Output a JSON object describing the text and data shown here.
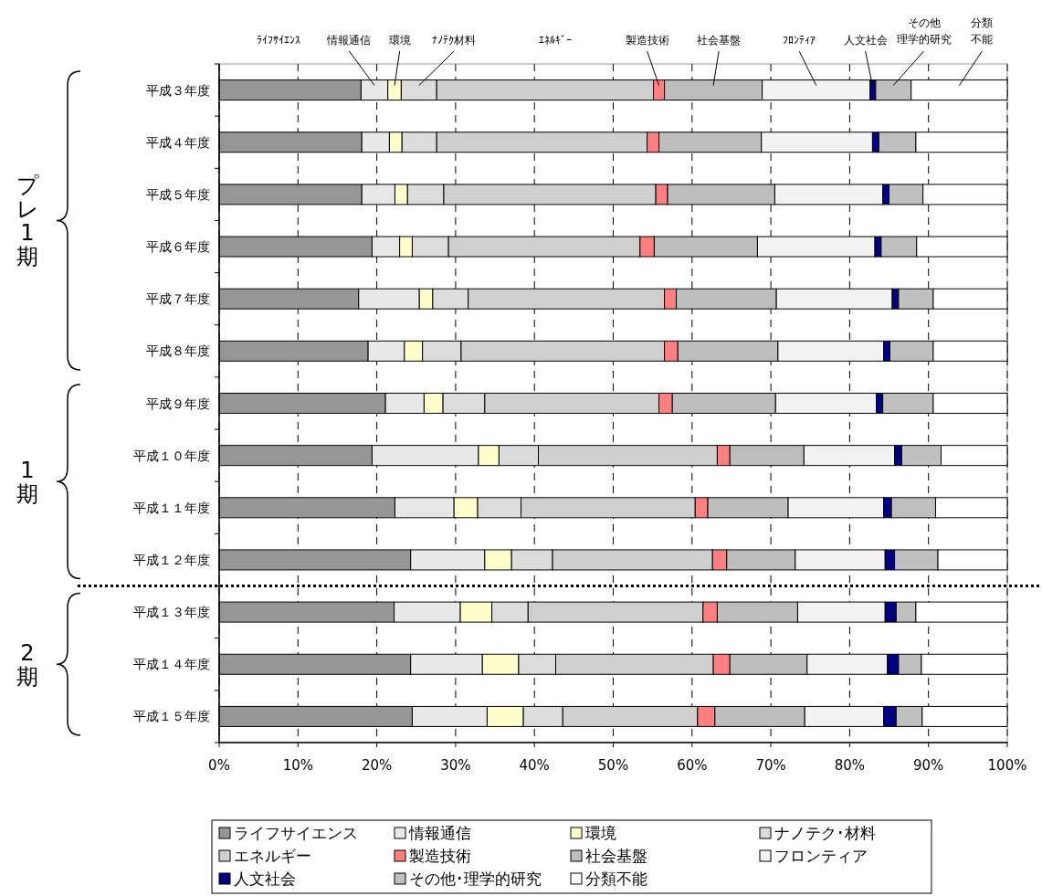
{
  "chart_data": {
    "type": "bar",
    "orientation": "horizontal",
    "stacked": true,
    "categories": [
      "平成３年度",
      "平成４年度",
      "平成５年度",
      "平成６年度",
      "平成７年度",
      "平成８年度",
      "平成９年度",
      "平成１０年度",
      "平成１１年度",
      "平成１２年度",
      "平成１３年度",
      "平成１４年度",
      "平成１５年度"
    ],
    "series": [
      {
        "name": "ライフサイエンス",
        "color": "#969696",
        "values": [
          18.0,
          18.1,
          18.1,
          19.4,
          17.7,
          18.9,
          21.1,
          19.4,
          22.3,
          24.3,
          22.2,
          24.3,
          24.5
        ]
      },
      {
        "name": "情報通信",
        "color": "#e8e8e8",
        "values": [
          3.4,
          3.5,
          4.2,
          3.5,
          7.7,
          4.6,
          4.9,
          13.5,
          7.5,
          9.4,
          8.4,
          9.1,
          9.5
        ]
      },
      {
        "name": "環境",
        "color": "#ffffcc",
        "values": [
          1.7,
          1.6,
          1.6,
          1.6,
          1.7,
          2.3,
          2.4,
          2.6,
          3.0,
          3.4,
          4.0,
          4.6,
          4.6
        ]
      },
      {
        "name": "ナノテク･材料",
        "color": "#dcdcdc",
        "values": [
          4.5,
          4.4,
          4.6,
          4.6,
          4.5,
          4.9,
          5.3,
          5.0,
          5.5,
          5.2,
          4.6,
          4.7,
          5.0
        ]
      },
      {
        "name": "エネルギー",
        "color": "#cfcfcf",
        "values": [
          27.5,
          26.7,
          26.9,
          24.3,
          24.9,
          25.8,
          22.1,
          22.7,
          22.1,
          20.3,
          22.2,
          20.0,
          17.1
        ]
      },
      {
        "name": "製造技術",
        "color": "#ff8080",
        "values": [
          1.4,
          1.5,
          1.5,
          1.8,
          1.5,
          1.7,
          1.7,
          1.6,
          1.6,
          1.8,
          1.8,
          2.1,
          2.2
        ]
      },
      {
        "name": "社会基盤",
        "color": "#bdbdbd",
        "values": [
          12.4,
          13.0,
          13.6,
          13.1,
          12.7,
          12.7,
          13.1,
          9.4,
          10.2,
          8.7,
          10.2,
          9.8,
          11.4
        ]
      },
      {
        "name": "フロンティア",
        "color": "#f2f2f2",
        "values": [
          13.7,
          14.1,
          13.7,
          14.9,
          14.7,
          13.4,
          12.8,
          11.5,
          12.1,
          11.4,
          11.1,
          10.2,
          10.0
        ]
      },
      {
        "name": "人文社会",
        "color": "#000080",
        "values": [
          0.7,
          0.8,
          0.8,
          0.8,
          0.8,
          0.8,
          0.8,
          0.9,
          1.0,
          1.2,
          1.4,
          1.4,
          1.6
        ]
      },
      {
        "name": "その他･理学的研究",
        "color": "#c0c0c0",
        "values": [
          4.5,
          4.7,
          4.3,
          4.5,
          4.4,
          5.5,
          6.4,
          5.0,
          5.6,
          5.5,
          2.5,
          2.9,
          3.3
        ]
      },
      {
        "name": "分類不能",
        "color": "#ffffff",
        "values": [
          12.2,
          11.6,
          10.7,
          11.5,
          9.4,
          9.4,
          9.4,
          8.4,
          9.1,
          8.8,
          11.6,
          10.9,
          10.8
        ]
      }
    ],
    "xlim": [
      0,
      100
    ],
    "xticks": [
      {
        "value": 0,
        "label": "0%"
      },
      {
        "value": 10,
        "label": "10%"
      },
      {
        "value": 20,
        "label": "20%"
      },
      {
        "value": 30,
        "label": "30%"
      },
      {
        "value": 40,
        "label": "40%"
      },
      {
        "value": 50,
        "label": "50%"
      },
      {
        "value": 60,
        "label": "60%"
      },
      {
        "value": 70,
        "label": "70%"
      },
      {
        "value": 80,
        "label": "80%"
      },
      {
        "value": 90,
        "label": "90%"
      },
      {
        "value": 100,
        "label": "100%"
      }
    ],
    "grid": "x",
    "legend": "bottom",
    "annotations": [
      "ﾗｲﾌｻｲｴﾝｽ",
      "情報通信",
      "環境",
      "ﾅﾉﾃｸ材料",
      "ｴﾈﾙｷﾞｰ",
      "製造技術",
      "社会基盤",
      "ﾌﾛﾝﾃｨｱ",
      {
        "text": "人文社会",
        "x": 83.0,
        "y": "平成３年度"
      },
      "その他理学的研究",
      "分類不能",
      "プレ1期",
      "1期",
      "2期"
    ],
    "ref_lines": [
      {
        "axis": "y",
        "value": "平成１２年度",
        "line_style": "dotted"
      }
    ]
  }
}
